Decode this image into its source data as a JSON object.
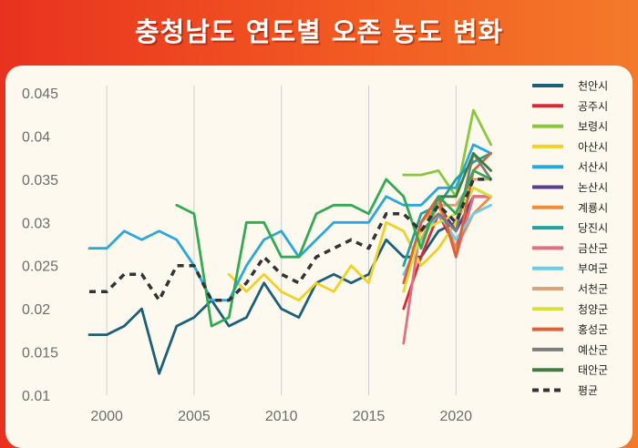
{
  "header": {
    "title": "충청남도 연도별 오존 농도 변화"
  },
  "chart_data": {
    "type": "line",
    "title": "충청남도 연도별 오존 농도 변화",
    "xlabel": "",
    "ylabel": "",
    "xlim": [
      1999,
      2022.7
    ],
    "ylim": [
      0.01,
      0.045
    ],
    "x_ticks": [
      2000,
      2005,
      2010,
      2015,
      2020
    ],
    "y_ticks": [
      0.01,
      0.015,
      0.02,
      0.025,
      0.03,
      0.035,
      0.04,
      0.045
    ],
    "y_tick_labels": [
      "0.01",
      "0.015",
      "0.02",
      "0.025",
      "0.03",
      "0.035",
      "0.04",
      "0.045"
    ],
    "grid": "vertical",
    "legend_position": "right",
    "series": [
      {
        "name": "천안시",
        "color": "#1c5f78",
        "dash": false,
        "points": [
          [
            1999,
            0.017
          ],
          [
            2000,
            0.017
          ],
          [
            2001,
            0.018
          ],
          [
            2002,
            0.02
          ],
          [
            2003,
            0.0125
          ],
          [
            2004,
            0.018
          ],
          [
            2005,
            0.019
          ],
          [
            2006,
            0.021
          ],
          [
            2007,
            0.018
          ],
          [
            2008,
            0.019
          ],
          [
            2009,
            0.023
          ],
          [
            2010,
            0.02
          ],
          [
            2011,
            0.019
          ],
          [
            2012,
            0.023
          ],
          [
            2013,
            0.024
          ],
          [
            2014,
            0.023
          ],
          [
            2015,
            0.024
          ],
          [
            2016,
            0.028
          ],
          [
            2017,
            0.026
          ],
          [
            2018,
            0.026
          ],
          [
            2019,
            0.029
          ],
          [
            2020,
            0.03
          ],
          [
            2021,
            0.034
          ],
          [
            2022,
            0.033
          ]
        ]
      },
      {
        "name": "공주시",
        "color": "#d62b35",
        "dash": false,
        "points": [
          [
            2017,
            0.02
          ],
          [
            2018,
            0.026
          ],
          [
            2019,
            0.031
          ],
          [
            2020,
            0.027
          ],
          [
            2021,
            0.033
          ],
          [
            2022,
            0.033
          ]
        ]
      },
      {
        "name": "보령시",
        "color": "#8cc63f",
        "dash": false,
        "points": [
          [
            2017,
            0.0355
          ],
          [
            2018,
            0.0355
          ],
          [
            2019,
            0.036
          ],
          [
            2020,
            0.033
          ],
          [
            2021,
            0.043
          ],
          [
            2022,
            0.039
          ]
        ]
      },
      {
        "name": "아산시",
        "color": "#f2d027",
        "dash": false,
        "points": [
          [
            2007,
            0.024
          ],
          [
            2008,
            0.022
          ],
          [
            2009,
            0.024
          ],
          [
            2010,
            0.022
          ],
          [
            2011,
            0.021
          ],
          [
            2012,
            0.023
          ],
          [
            2013,
            0.022
          ],
          [
            2014,
            0.025
          ],
          [
            2015,
            0.023
          ],
          [
            2016,
            0.03
          ],
          [
            2017,
            0.029
          ],
          [
            2018,
            0.025
          ],
          [
            2019,
            0.027
          ],
          [
            2020,
            0.03
          ],
          [
            2021,
            0.034
          ],
          [
            2022,
            0.033
          ]
        ]
      },
      {
        "name": "서산시",
        "color": "#2aa7dd",
        "dash": false,
        "points": [
          [
            1999,
            0.027
          ],
          [
            2000,
            0.027
          ],
          [
            2001,
            0.029
          ],
          [
            2002,
            0.028
          ],
          [
            2003,
            0.029
          ],
          [
            2004,
            0.028
          ],
          [
            2005,
            0.025
          ],
          [
            2006,
            0.021
          ],
          [
            2007,
            0.021
          ],
          [
            2008,
            0.025
          ],
          [
            2009,
            0.028
          ],
          [
            2010,
            0.029
          ],
          [
            2011,
            0.026
          ],
          [
            2012,
            0.028
          ],
          [
            2013,
            0.03
          ],
          [
            2014,
            0.03
          ],
          [
            2015,
            0.03
          ],
          [
            2016,
            0.033
          ],
          [
            2017,
            0.032
          ],
          [
            2018,
            0.032
          ],
          [
            2019,
            0.034
          ],
          [
            2020,
            0.034
          ],
          [
            2021,
            0.039
          ],
          [
            2022,
            0.038
          ]
        ]
      },
      {
        "name": "논산시",
        "color": "#5a3d8c",
        "dash": false,
        "points": [
          [
            2019,
            0.032
          ],
          [
            2020,
            0.029
          ],
          [
            2021,
            0.033
          ],
          [
            2022,
            0.033
          ]
        ]
      },
      {
        "name": "계룡시",
        "color": "#f08c3a",
        "dash": false,
        "points": [
          [
            2018,
            0.03
          ],
          [
            2019,
            0.032
          ],
          [
            2020,
            0.027
          ],
          [
            2021,
            0.031
          ],
          [
            2022,
            0.033
          ]
        ]
      },
      {
        "name": "당진시",
        "color": "#1fa39b",
        "dash": false,
        "points": [
          [
            2017,
            0.025
          ],
          [
            2018,
            0.031
          ],
          [
            2019,
            0.032
          ],
          [
            2020,
            0.035
          ],
          [
            2021,
            0.037
          ],
          [
            2022,
            0.038
          ]
        ]
      },
      {
        "name": "금산군",
        "color": "#e0707f",
        "dash": false,
        "points": [
          [
            2017,
            0.016
          ],
          [
            2018,
            0.03
          ],
          [
            2019,
            0.033
          ],
          [
            2020,
            0.026
          ],
          [
            2021,
            0.033
          ],
          [
            2022,
            0.033
          ]
        ]
      },
      {
        "name": "부여군",
        "color": "#6fcbe8",
        "dash": false,
        "points": [
          [
            2017,
            0.024
          ],
          [
            2018,
            0.028
          ],
          [
            2019,
            0.031
          ],
          [
            2020,
            0.028
          ],
          [
            2021,
            0.031
          ],
          [
            2022,
            0.032
          ]
        ]
      },
      {
        "name": "서천군",
        "color": "#d8a27a",
        "dash": false,
        "points": [
          [
            2018,
            0.028
          ],
          [
            2019,
            0.032
          ],
          [
            2020,
            0.032
          ],
          [
            2021,
            0.035
          ],
          [
            2022,
            0.035
          ]
        ]
      },
      {
        "name": "청양군",
        "color": "#d9e03a",
        "dash": false,
        "points": [
          [
            2017,
            0.022
          ],
          [
            2018,
            0.029
          ],
          [
            2019,
            0.03
          ],
          [
            2020,
            0.031
          ],
          [
            2021,
            0.034
          ],
          [
            2022,
            0.033
          ]
        ]
      },
      {
        "name": "홍성군",
        "color": "#d7643f",
        "dash": false,
        "points": [
          [
            2017,
            0.023
          ],
          [
            2018,
            0.03
          ],
          [
            2019,
            0.033
          ],
          [
            2020,
            0.026
          ],
          [
            2021,
            0.036
          ],
          [
            2022,
            0.038
          ]
        ]
      },
      {
        "name": "예산군",
        "color": "#7d7d7d",
        "dash": false,
        "points": [
          [
            2018,
            0.029
          ],
          [
            2019,
            0.031
          ],
          [
            2020,
            0.029
          ],
          [
            2021,
            0.038
          ],
          [
            2022,
            0.035
          ]
        ]
      },
      {
        "name": "태안군",
        "color": "#3e7d3e",
        "dash": false,
        "points": [
          [
            2018,
            0.027
          ],
          [
            2019,
            0.033
          ],
          [
            2020,
            0.033
          ],
          [
            2021,
            0.038
          ],
          [
            2022,
            0.036
          ]
        ]
      },
      {
        "name": "보령시_green2",
        "hidden_in_legend": true,
        "color": "#34a853",
        "dash": false,
        "points": [
          [
            2004,
            0.032
          ],
          [
            2005,
            0.031
          ],
          [
            2006,
            0.018
          ],
          [
            2007,
            0.019
          ],
          [
            2008,
            0.03
          ],
          [
            2009,
            0.03
          ],
          [
            2010,
            0.026
          ],
          [
            2011,
            0.026
          ],
          [
            2012,
            0.031
          ],
          [
            2013,
            0.032
          ],
          [
            2014,
            0.032
          ],
          [
            2015,
            0.031
          ],
          [
            2016,
            0.035
          ],
          [
            2017,
            0.033
          ],
          [
            2018,
            0.027
          ],
          [
            2019,
            0.033
          ],
          [
            2020,
            0.031
          ],
          [
            2021,
            0.036
          ],
          [
            2022,
            0.035
          ]
        ]
      },
      {
        "name": "평균",
        "color": "#333333",
        "dash": true,
        "points": [
          [
            1999,
            0.022
          ],
          [
            2000,
            0.022
          ],
          [
            2001,
            0.024
          ],
          [
            2002,
            0.024
          ],
          [
            2003,
            0.021
          ],
          [
            2004,
            0.025
          ],
          [
            2005,
            0.025
          ],
          [
            2006,
            0.021
          ],
          [
            2007,
            0.021
          ],
          [
            2008,
            0.023
          ],
          [
            2009,
            0.026
          ],
          [
            2010,
            0.024
          ],
          [
            2011,
            0.023
          ],
          [
            2012,
            0.026
          ],
          [
            2013,
            0.027
          ],
          [
            2014,
            0.028
          ],
          [
            2015,
            0.027
          ],
          [
            2016,
            0.031
          ],
          [
            2017,
            0.031
          ],
          [
            2018,
            0.029
          ],
          [
            2019,
            0.032
          ],
          [
            2020,
            0.03
          ],
          [
            2021,
            0.035
          ],
          [
            2022,
            0.035
          ]
        ]
      }
    ]
  }
}
